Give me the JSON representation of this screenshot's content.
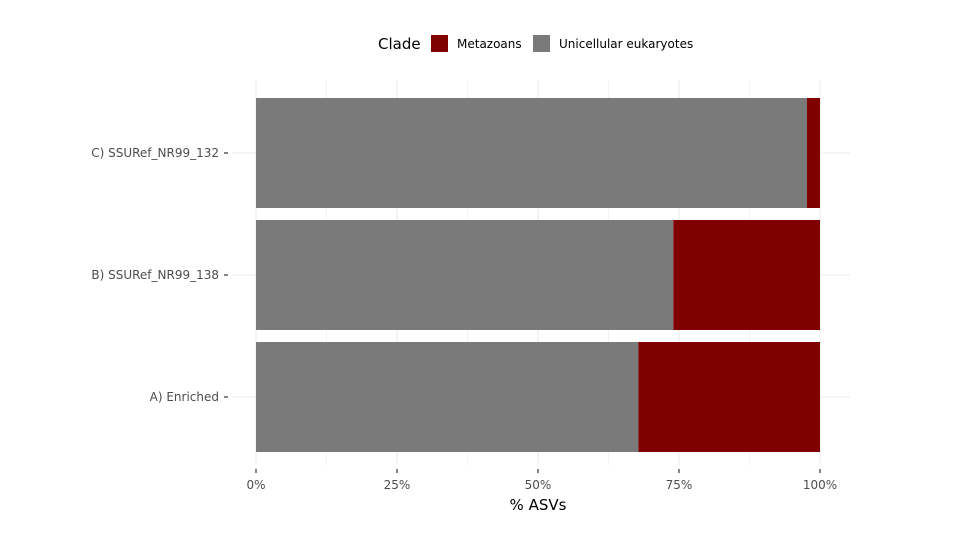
{
  "chart_data": {
    "type": "bar",
    "orientation": "horizontal",
    "stacked": true,
    "categories": [
      "A) Enriched",
      "B) SSURef_NR99_138",
      "C) SSURef_NR99_132"
    ],
    "series": [
      {
        "name": "Unicellular eukaryotes",
        "color": "#7a7a7a",
        "values": [
          0.678,
          0.74,
          0.977
        ]
      },
      {
        "name": "Metazoans",
        "color": "#800000",
        "values": [
          0.322,
          0.26,
          0.023
        ]
      }
    ],
    "xlabel": "% ASVs",
    "ylabel": "",
    "xlim": [
      0,
      1
    ],
    "x_ticks": [
      {
        "value": 0,
        "label": "0%"
      },
      {
        "value": 0.25,
        "label": "25%"
      },
      {
        "value": 0.5,
        "label": "50%"
      },
      {
        "value": 0.75,
        "label": "75%"
      },
      {
        "value": 1,
        "label": "100%"
      }
    ],
    "legend": {
      "title": "Clade",
      "position": "top",
      "entries": [
        {
          "label": "Metazoans",
          "color": "#800000"
        },
        {
          "label": "Unicellular eukaryotes",
          "color": "#7a7a7a"
        }
      ]
    },
    "grid": true,
    "grid_color": "#ebebeb"
  }
}
